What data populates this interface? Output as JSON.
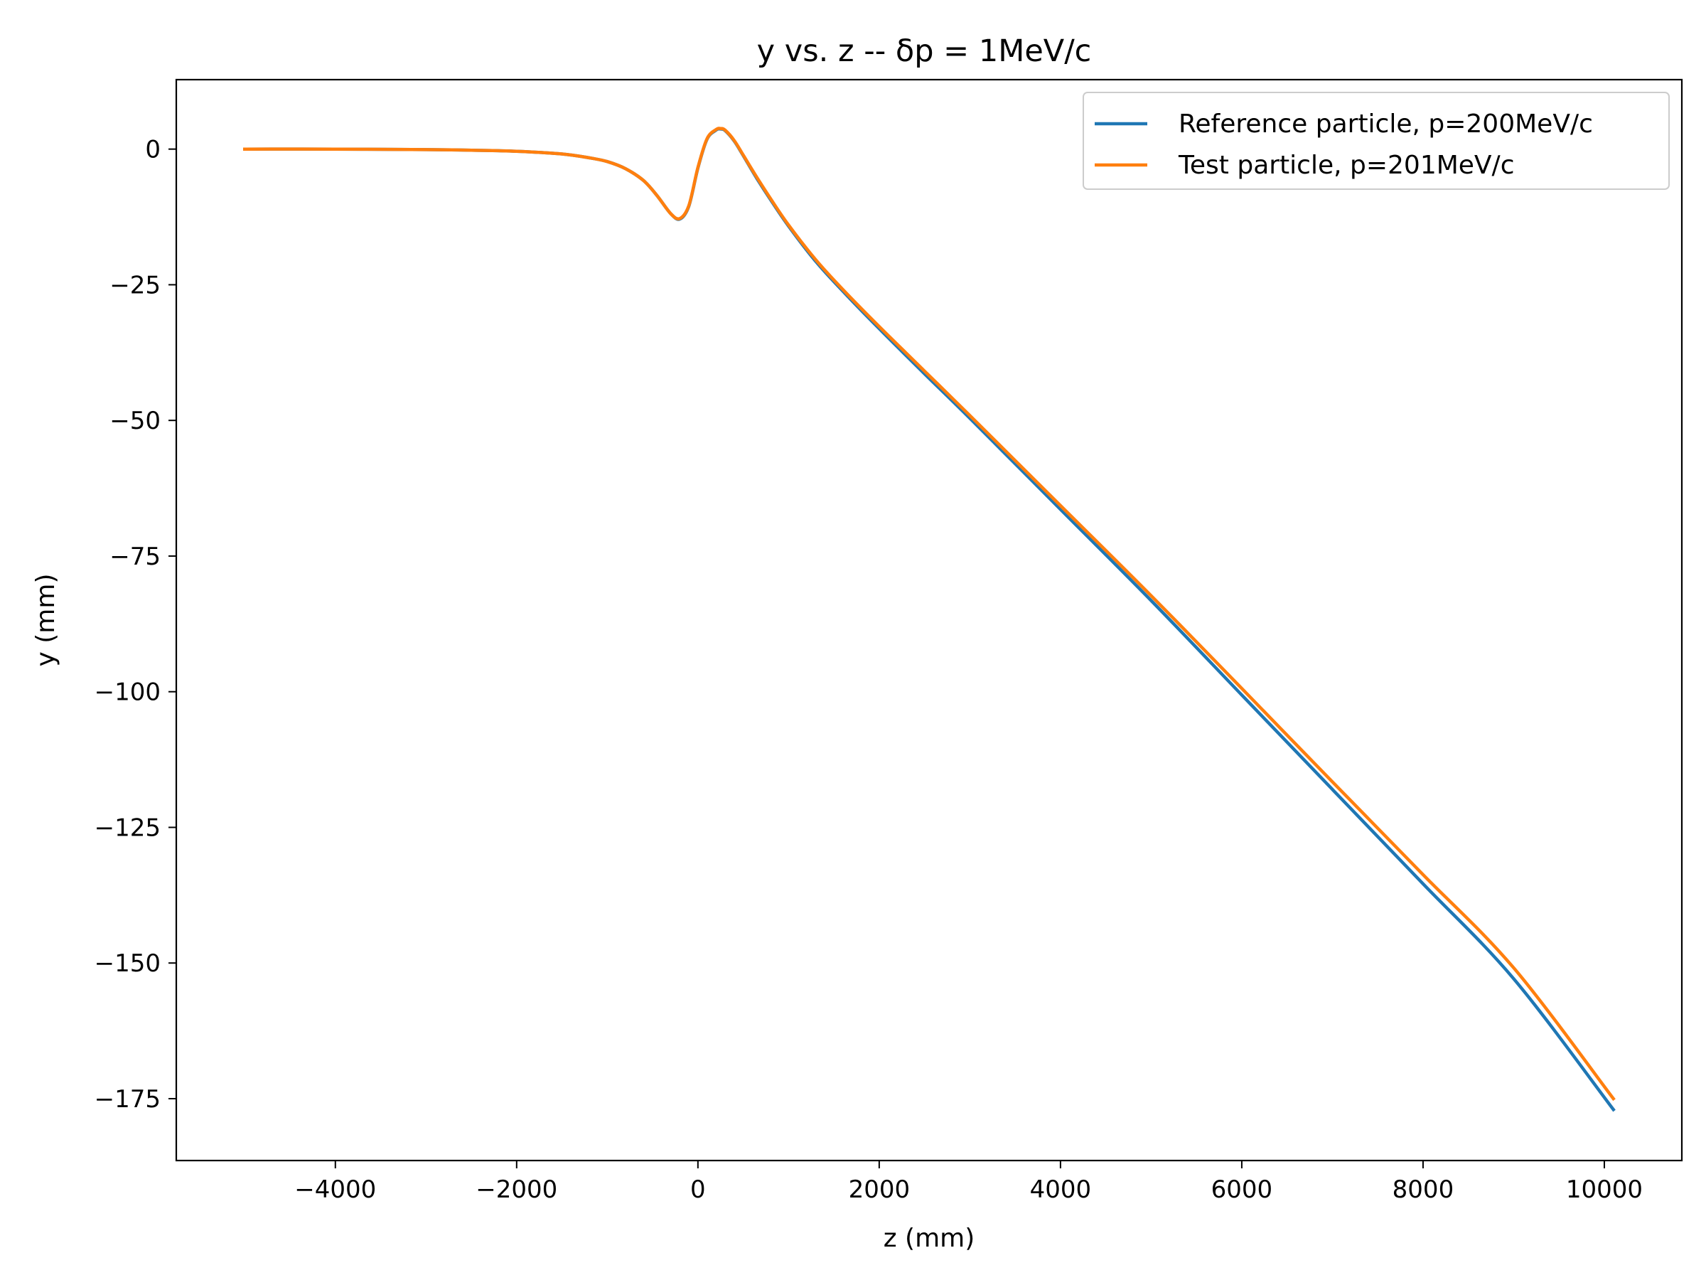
{
  "chart_data": {
    "type": "line",
    "title": "y vs. z -- δp = 1MeV/c",
    "xlabel": "z (mm)",
    "ylabel": "y (mm)",
    "xlim": [
      -5755,
      10855
    ],
    "ylim": [
      -186.4,
      12.8
    ],
    "xticks": [
      -4000,
      -2000,
      0,
      2000,
      4000,
      6000,
      8000,
      10000
    ],
    "xtick_labels": [
      "−4000",
      "−2000",
      "0",
      "2000",
      "4000",
      "6000",
      "8000",
      "10000"
    ],
    "yticks": [
      0,
      -25,
      -50,
      -75,
      -100,
      -125,
      -150,
      -175
    ],
    "ytick_labels": [
      "0",
      "−25",
      "−50",
      "−75",
      "−100",
      "−125",
      "−150",
      "−175"
    ],
    "grid": false,
    "legend_position": "top-right",
    "series": [
      {
        "name": "Reference particle, p=200MeV/c",
        "color": "#1f77b4",
        "x": [
          -5000,
          -4000,
          -3000,
          -2500,
          -2000,
          -1500,
          -1200,
          -1000,
          -800,
          -600,
          -450,
          -300,
          -200,
          -100,
          0,
          100,
          200,
          250,
          300,
          400,
          500,
          650,
          800,
          1000,
          1300,
          1600,
          2000,
          2500,
          3000,
          4000,
          5000,
          6000,
          7000,
          8000,
          9000,
          10100
        ],
        "y": [
          0.0,
          0.0,
          -0.1,
          -0.2,
          -0.4,
          -0.9,
          -1.6,
          -2.3,
          -3.6,
          -5.8,
          -8.6,
          -11.9,
          -12.9,
          -10.5,
          -3.5,
          1.8,
          3.5,
          3.7,
          3.4,
          1.5,
          -1.2,
          -5.4,
          -9.3,
          -14.2,
          -20.7,
          -26.2,
          -33.1,
          -41.4,
          -49.6,
          -66.4,
          -83.2,
          -100.6,
          -118.0,
          -135.4,
          -152.9,
          -177.0
        ]
      },
      {
        "name": "Test particle, p=201MeV/c",
        "color": "#ff7f0e",
        "x": [
          -5000,
          -4000,
          -3000,
          -2500,
          -2000,
          -1500,
          -1200,
          -1000,
          -800,
          -600,
          -450,
          -300,
          -200,
          -100,
          0,
          100,
          200,
          250,
          300,
          400,
          500,
          650,
          800,
          1000,
          1300,
          1600,
          2000,
          2500,
          3000,
          4000,
          5000,
          6000,
          7000,
          8000,
          9000,
          10100
        ],
        "y": [
          0.0,
          0.0,
          -0.1,
          -0.2,
          -0.4,
          -0.9,
          -1.6,
          -2.3,
          -3.6,
          -5.8,
          -8.6,
          -11.9,
          -12.8,
          -10.4,
          -3.4,
          1.9,
          3.6,
          3.8,
          3.5,
          1.6,
          -1.1,
          -5.2,
          -9.1,
          -14.0,
          -20.4,
          -25.9,
          -32.7,
          -40.9,
          -49.1,
          -65.7,
          -82.3,
          -99.4,
          -116.6,
          -133.7,
          -150.9,
          -175.0
        ]
      }
    ]
  }
}
